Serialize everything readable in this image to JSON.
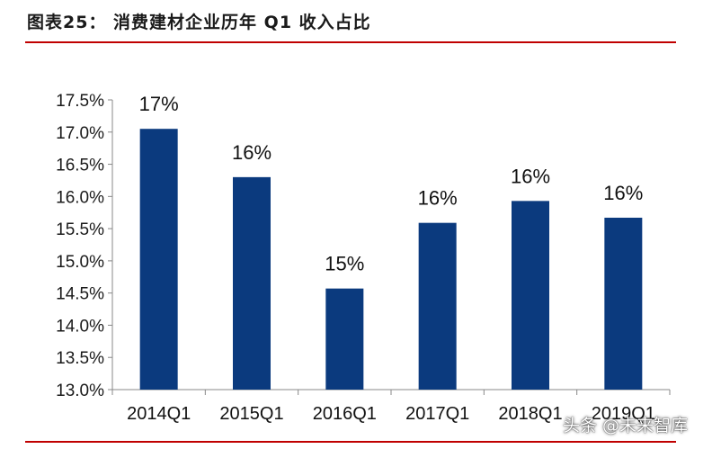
{
  "figure": {
    "title": "图表25：  消费建材企业历年 Q1 收入占比"
  },
  "watermark": "头条 @未来智库",
  "colors": {
    "bar": "#0b3a7e",
    "rule": "#c00000",
    "axis": "#888888"
  },
  "chart_data": {
    "type": "bar",
    "categories": [
      "2014Q1",
      "2015Q1",
      "2016Q1",
      "2017Q1",
      "2018Q1",
      "2019Q1"
    ],
    "values": [
      17.05,
      16.3,
      14.57,
      15.59,
      15.93,
      15.67
    ],
    "data_labels": [
      "17%",
      "16%",
      "15%",
      "16%",
      "16%",
      "16%"
    ],
    "ylim": [
      13.0,
      17.5
    ],
    "yticks": [
      13.0,
      13.5,
      14.0,
      14.5,
      15.0,
      15.5,
      16.0,
      16.5,
      17.0,
      17.5
    ],
    "ytick_labels": [
      "13.0%",
      "13.5%",
      "14.0%",
      "14.5%",
      "15.0%",
      "15.5%",
      "16.0%",
      "16.5%",
      "17.0%",
      "17.5%"
    ],
    "title": "",
    "xlabel": "",
    "ylabel": "",
    "grid": false,
    "legend": "none"
  }
}
